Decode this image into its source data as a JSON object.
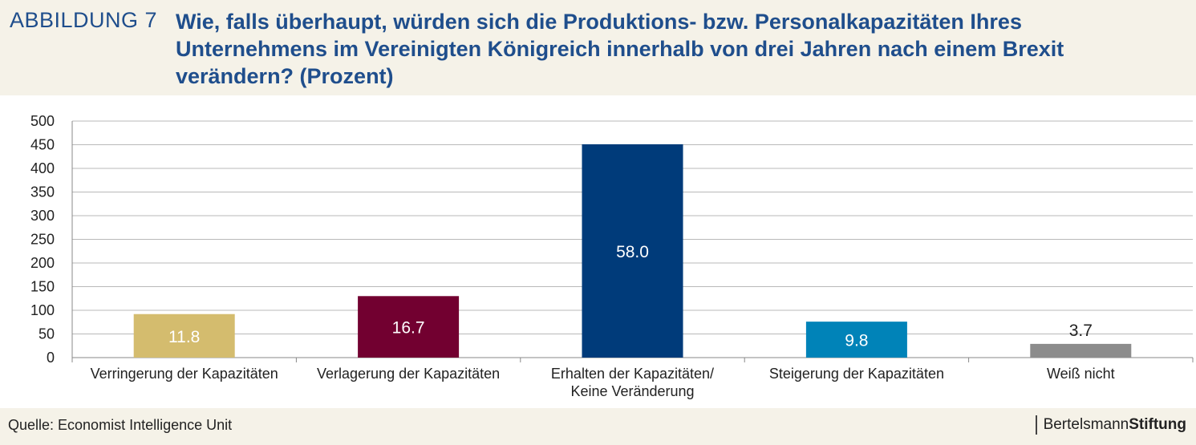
{
  "header": {
    "figure_label": "ABBILDUNG 7",
    "title": "Wie, falls überhaupt, würden sich die Produktions- bzw. Personalkapazitäten  Ihres Unternehmens im Vereinigten Königreich innerhalb von drei Jahren nach einem Brexit verändern? (Prozent)"
  },
  "footer": {
    "source": "Quelle: Economist Intelligence Unit",
    "logo_regular": "Bertelsmann",
    "logo_bold": "Stiftung"
  },
  "colors": {
    "title": "#1f4e8c",
    "background": "#f5f2e8"
  },
  "chart_data": {
    "type": "bar",
    "categories": [
      [
        "Verringerung der Kapazitäten"
      ],
      [
        "Verlagerung der Kapazitäten"
      ],
      [
        "Erhalten der Kapazitäten/",
        "Keine Veränderung"
      ],
      [
        "Steigerung der Kapazitäten"
      ],
      [
        "Weiß nicht"
      ]
    ],
    "values": [
      92,
      130,
      451,
      76,
      29
    ],
    "data_labels": [
      "11.8",
      "16.7",
      "58.0",
      "9.8",
      "3.7"
    ],
    "bar_colors": [
      "#d4bc6e",
      "#720030",
      "#003b7a",
      "#0083b8",
      "#8c8c8c"
    ],
    "label_colors": [
      "#ffffff",
      "#ffffff",
      "#ffffff",
      "#ffffff",
      "#222222"
    ],
    "label_inside": [
      true,
      true,
      true,
      true,
      false
    ],
    "ylim": [
      0,
      500
    ],
    "yticks": [
      "0",
      "50",
      "100",
      "150",
      "200",
      "250",
      "300",
      "350",
      "400",
      "450",
      "500"
    ],
    "grid": true
  }
}
